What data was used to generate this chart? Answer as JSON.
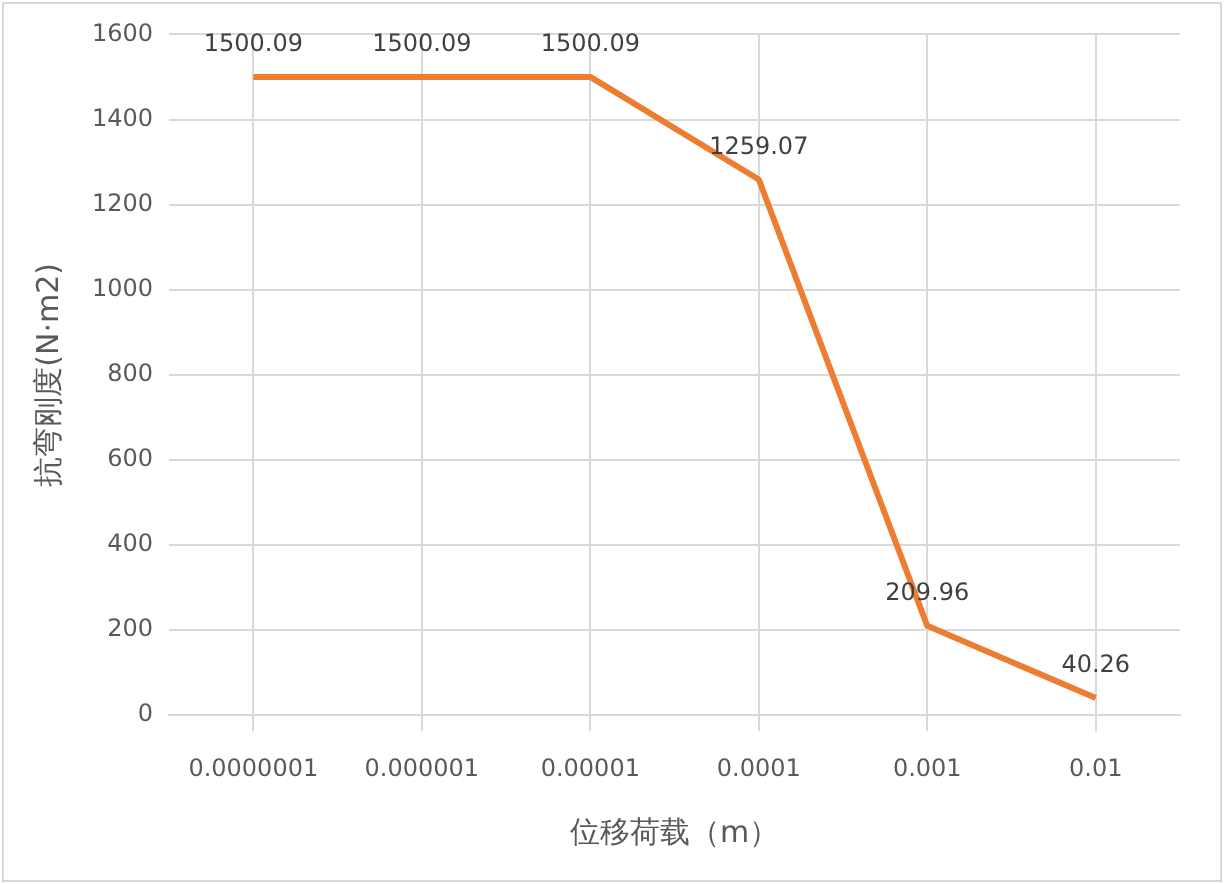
{
  "chart_data": {
    "type": "line",
    "xlabel": "位移荷载（m）",
    "ylabel": "抗弯刚度(N·m2)",
    "categories": [
      "0.0000001",
      "0.000001",
      "0.00001",
      "0.0001",
      "0.001",
      "0.01"
    ],
    "series": [
      {
        "color": "#ed7d31",
        "values": [
          1500.09,
          1500.09,
          1500.09,
          1259.07,
          209.96,
          40.26
        ]
      }
    ],
    "ylim": [
      0,
      1600
    ],
    "yticks": [
      0,
      200,
      400,
      600,
      800,
      1000,
      1200,
      1400,
      1600
    ],
    "grid": true,
    "legend": false,
    "marker": "none",
    "line_style": "solid",
    "data_labels": true
  }
}
